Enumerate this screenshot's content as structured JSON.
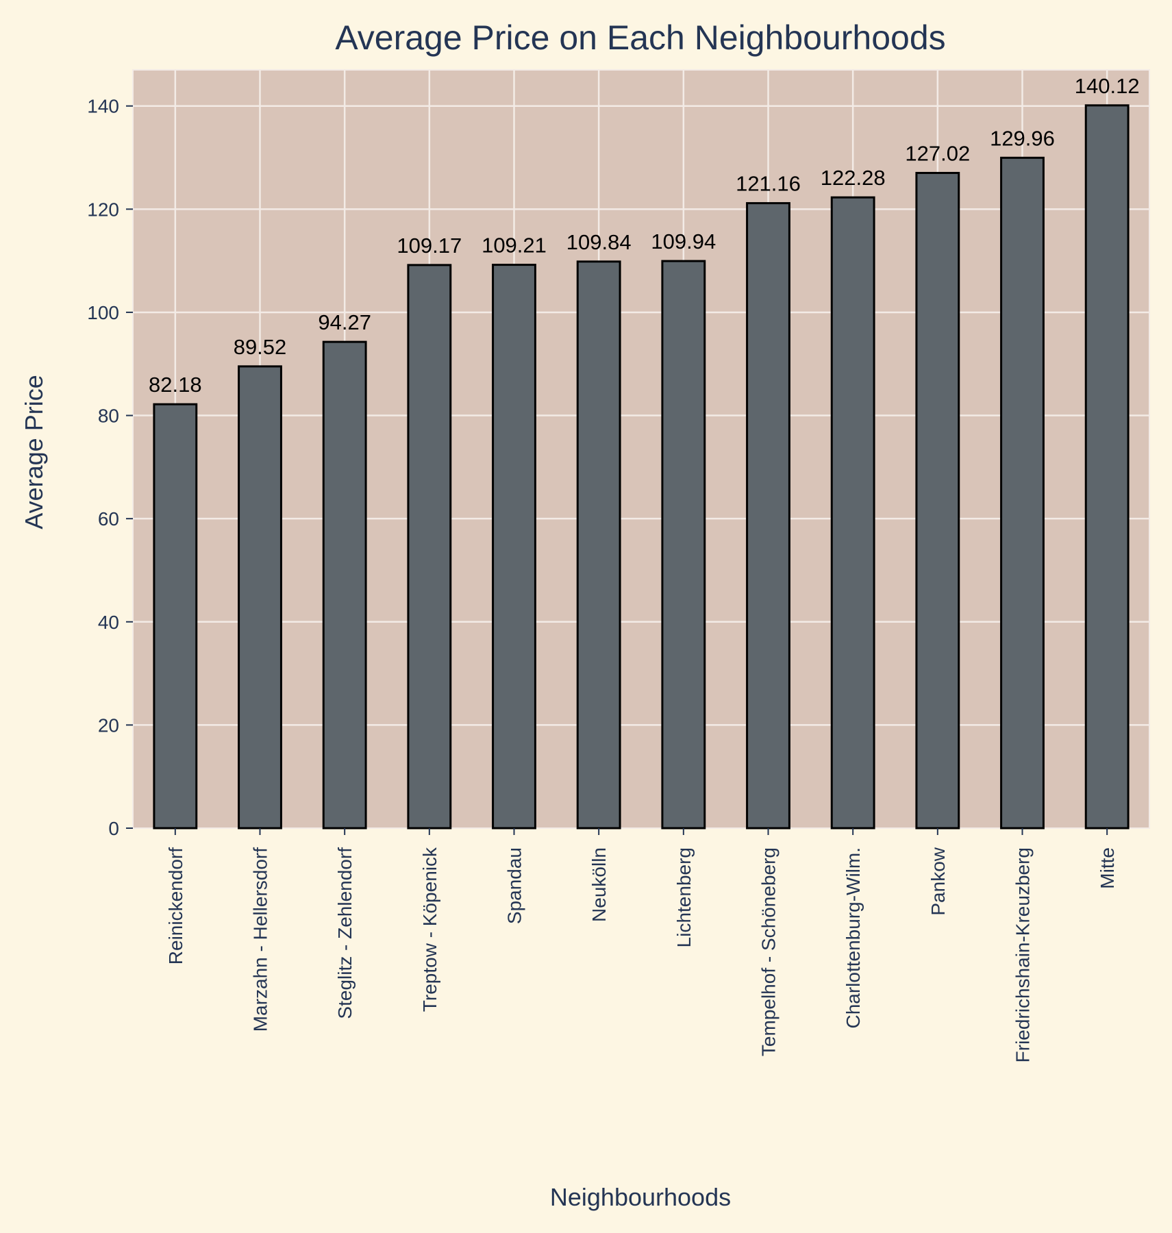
{
  "chart_data": {
    "type": "bar",
    "title": "Average Price on Each Neighbourhoods",
    "xlabel": "Neighbourhoods",
    "ylabel": "Average Price",
    "categories": [
      "Reinickendorf",
      "Marzahn - Hellersdorf",
      "Steglitz - Zehlendorf",
      "Treptow - Köpenick",
      "Spandau",
      "Neukölln",
      "Lichtenberg",
      "Tempelhof - Schöneberg",
      "Charlottenburg-Wilm.",
      "Pankow",
      "Friedrichshain-Kreuzberg",
      "Mitte"
    ],
    "values": [
      82.18,
      89.52,
      94.27,
      109.17,
      109.21,
      109.84,
      109.94,
      121.16,
      122.28,
      127.02,
      129.96,
      140.12
    ],
    "data_labels": [
      "82.18",
      "89.52",
      "94.27",
      "109.17",
      "109.21",
      "109.84",
      "109.94",
      "121.16",
      "122.28",
      "127.02",
      "129.96",
      "140.12"
    ],
    "ylim": [
      0,
      147
    ],
    "yticks": [
      0,
      20,
      40,
      60,
      80,
      100,
      120,
      140
    ],
    "grid": true,
    "colors": {
      "figure_background": "#fdf6e3",
      "plot_background": "#d9c4b8",
      "bar_fill": "#5e666c",
      "bar_edge": "#000000",
      "grid": "#f3ebe6",
      "text": "#243554"
    }
  }
}
